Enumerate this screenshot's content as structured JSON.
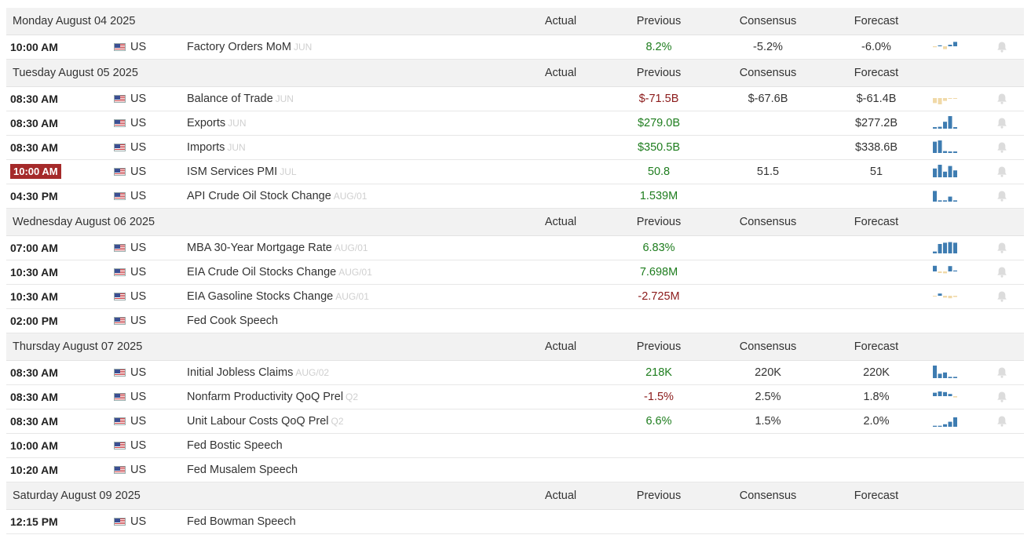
{
  "columns": {
    "actual": "Actual",
    "previous": "Previous",
    "consensus": "Consensus",
    "forecast": "Forecast"
  },
  "colors": {
    "positive": "#1e7d1e",
    "negative": "#8b1a1a",
    "highlight_time": "#a52a2a",
    "spark_blue": "#3e7cb1",
    "spark_tan": "#f0d9a8",
    "bell": "#dcdcdc"
  },
  "days": [
    {
      "title": "Monday August 04 2025",
      "events": [
        {
          "time": "10:00 AM",
          "country": "US",
          "event": "Factory Orders MoM",
          "ref": "JUN",
          "actual": "",
          "previous": "8.2%",
          "previous_tone": "green",
          "consensus": "-5.2%",
          "forecast": "-6.0%",
          "spark": [
            -0.15,
            0.15,
            -0.45,
            0.25,
            0.7
          ]
        }
      ]
    },
    {
      "title": "Tuesday August 05 2025",
      "events": [
        {
          "time": "08:30 AM",
          "country": "US",
          "event": "Balance of Trade",
          "ref": "JUN",
          "actual": "",
          "previous": "$-71.5B",
          "previous_tone": "red",
          "consensus": "$-67.6B",
          "forecast": "$-61.4B",
          "spark": [
            -0.8,
            -1.0,
            -0.45,
            -0.1,
            -0.08
          ]
        },
        {
          "time": "08:30 AM",
          "country": "US",
          "event": "Exports",
          "ref": "JUN",
          "actual": "",
          "previous": "$279.0B",
          "previous_tone": "green",
          "consensus": "",
          "forecast": "$277.2B",
          "spark": [
            0.12,
            0.15,
            0.55,
            1.0,
            0.12
          ]
        },
        {
          "time": "08:30 AM",
          "country": "US",
          "event": "Imports",
          "ref": "JUN",
          "actual": "",
          "previous": "$350.5B",
          "previous_tone": "green",
          "consensus": "",
          "forecast": "$338.6B",
          "spark": [
            0.9,
            1.0,
            0.15,
            0.12,
            0.12
          ]
        },
        {
          "time": "10:00 AM",
          "highlight": true,
          "country": "US",
          "event": "ISM Services PMI",
          "ref": "JUL",
          "actual": "",
          "previous": "50.8",
          "previous_tone": "green",
          "consensus": "51.5",
          "forecast": "51",
          "spark": [
            0.7,
            1.0,
            0.45,
            0.9,
            0.55
          ]
        },
        {
          "time": "04:30 PM",
          "country": "US",
          "event": "API Crude Oil Stock Change",
          "ref": "AUG/01",
          "actual": "",
          "previous": "1.539M",
          "previous_tone": "green",
          "consensus": "",
          "forecast": "",
          "spark": [
            0.85,
            0.1,
            0.1,
            0.4,
            0.1
          ]
        }
      ]
    },
    {
      "title": "Wednesday August 06 2025",
      "events": [
        {
          "time": "07:00 AM",
          "country": "US",
          "event": "MBA 30-Year Mortgage Rate",
          "ref": "AUG/01",
          "actual": "",
          "previous": "6.83%",
          "previous_tone": "green",
          "consensus": "",
          "forecast": "",
          "spark": [
            0.15,
            0.75,
            0.85,
            0.9,
            0.85
          ]
        },
        {
          "time": "10:30 AM",
          "country": "US",
          "event": "EIA Crude Oil Stocks Change",
          "ref": "AUG/01",
          "actual": "",
          "previous": "7.698M",
          "previous_tone": "green",
          "consensus": "",
          "forecast": "",
          "spark": [
            0.9,
            -0.25,
            -0.3,
            0.85,
            0.15
          ]
        },
        {
          "time": "10:30 AM",
          "country": "US",
          "event": "EIA Gasoline Stocks Change",
          "ref": "AUG/01",
          "actual": "",
          "previous": "-2.725M",
          "previous_tone": "red",
          "consensus": "",
          "forecast": "",
          "spark": [
            -0.1,
            0.35,
            -0.3,
            -0.4,
            -0.2
          ]
        },
        {
          "time": "02:00 PM",
          "country": "US",
          "event": "Fed Cook Speech",
          "ref": "",
          "actual": "",
          "previous": "",
          "previous_tone": "neutral",
          "consensus": "",
          "forecast": "",
          "spark": []
        }
      ]
    },
    {
      "title": "Thursday August 07 2025",
      "events": [
        {
          "time": "08:30 AM",
          "country": "US",
          "event": "Initial Jobless Claims",
          "ref": "AUG/02",
          "actual": "",
          "previous": "218K",
          "previous_tone": "green",
          "consensus": "220K",
          "forecast": "220K",
          "spark": [
            1.0,
            0.35,
            0.45,
            0.1,
            0.1
          ]
        },
        {
          "time": "08:30 AM",
          "country": "US",
          "event": "Nonfarm Productivity QoQ Prel",
          "ref": "Q2",
          "actual": "",
          "previous": "-1.5%",
          "previous_tone": "red",
          "consensus": "2.5%",
          "forecast": "1.8%",
          "spark": [
            0.55,
            0.75,
            0.65,
            0.35,
            -0.2
          ]
        },
        {
          "time": "08:30 AM",
          "country": "US",
          "event": "Unit Labour Costs QoQ Prel",
          "ref": "Q2",
          "actual": "",
          "previous": "6.6%",
          "previous_tone": "green",
          "consensus": "1.5%",
          "forecast": "2.0%",
          "spark": [
            0.08,
            0.08,
            0.2,
            0.4,
            0.75
          ]
        },
        {
          "time": "10:00 AM",
          "country": "US",
          "event": "Fed Bostic Speech",
          "ref": "",
          "actual": "",
          "previous": "",
          "previous_tone": "neutral",
          "consensus": "",
          "forecast": "",
          "spark": []
        },
        {
          "time": "10:20 AM",
          "country": "US",
          "event": "Fed Musalem Speech",
          "ref": "",
          "actual": "",
          "previous": "",
          "previous_tone": "neutral",
          "consensus": "",
          "forecast": "",
          "spark": []
        }
      ]
    },
    {
      "title": "Saturday August 09 2025",
      "events": [
        {
          "time": "12:15 PM",
          "country": "US",
          "event": "Fed Bowman Speech",
          "ref": "",
          "actual": "",
          "previous": "",
          "previous_tone": "neutral",
          "consensus": "",
          "forecast": "",
          "spark": []
        }
      ]
    }
  ]
}
